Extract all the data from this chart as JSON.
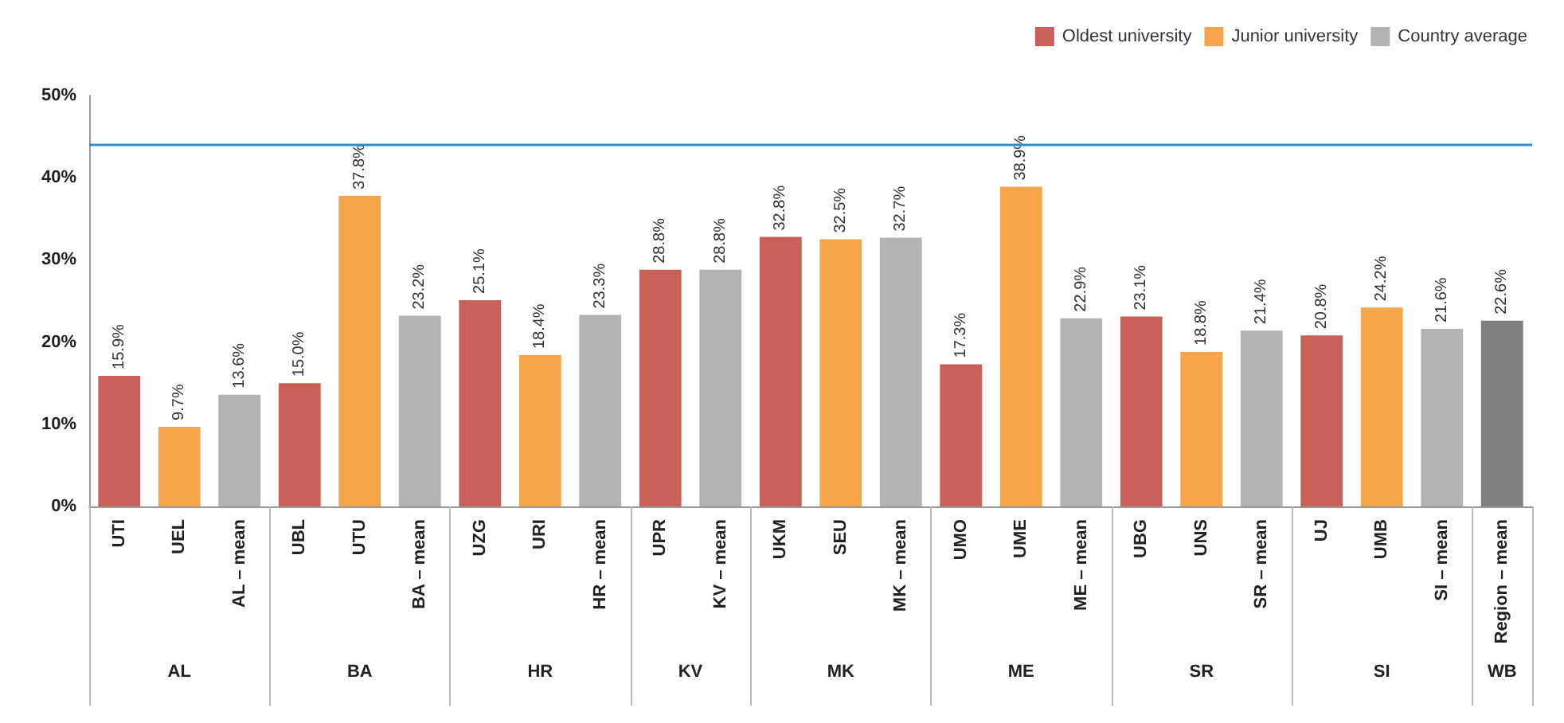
{
  "chart_data": {
    "type": "bar",
    "categories": [
      "UTI",
      "UEL",
      "AL – mean",
      "UBL",
      "UTU",
      "BA – mean",
      "UZG",
      "URI",
      "HR – mean",
      "UPR",
      "KV – mean",
      "UKM",
      "SEU",
      "MK – mean",
      "UMO",
      "UME",
      "ME – mean",
      "UBG",
      "UNS",
      "SR – mean",
      "UJ",
      "UMB",
      "SI – mean",
      "Region – mean"
    ],
    "series": [
      {
        "name": "Oldest university",
        "color": "#c9605a",
        "values": [
          15.9,
          null,
          null,
          15.0,
          null,
          null,
          25.1,
          null,
          null,
          28.8,
          null,
          32.8,
          null,
          null,
          17.3,
          null,
          null,
          23.1,
          null,
          null,
          20.8,
          null,
          null,
          null
        ],
        "value_labels": [
          "15.9%",
          null,
          null,
          "15.0%",
          null,
          null,
          "25.1%",
          null,
          null,
          "28.8%",
          null,
          "32.8%",
          null,
          null,
          "17.3%",
          null,
          null,
          "23.1%",
          null,
          null,
          "20.8%",
          null,
          null,
          null
        ]
      },
      {
        "name": "Junior university",
        "color": "#f5a54a",
        "values": [
          null,
          9.7,
          null,
          null,
          37.8,
          null,
          null,
          18.4,
          null,
          null,
          null,
          null,
          32.5,
          null,
          null,
          38.9,
          null,
          null,
          18.8,
          null,
          null,
          24.2,
          null,
          null
        ],
        "value_labels": [
          null,
          "9.7%",
          null,
          null,
          "37.8%",
          null,
          null,
          "18.4%",
          null,
          null,
          null,
          null,
          "32.5%",
          null,
          null,
          "38.9%",
          null,
          null,
          "18.8%",
          null,
          null,
          "24.2%",
          null,
          null
        ]
      },
      {
        "name": "Country average",
        "color": "#b3b3b3",
        "values": [
          null,
          null,
          13.6,
          null,
          null,
          23.2,
          null,
          null,
          23.3,
          null,
          28.8,
          null,
          null,
          32.7,
          null,
          null,
          22.9,
          null,
          null,
          21.4,
          null,
          null,
          21.6,
          null
        ],
        "value_labels": [
          null,
          null,
          "13.6%",
          null,
          null,
          "23.2%",
          null,
          null,
          "23.3%",
          null,
          "28.8%",
          null,
          null,
          "32.7%",
          null,
          null,
          "22.9%",
          null,
          null,
          "21.4%",
          null,
          null,
          "21.6%",
          null
        ]
      },
      {
        "color": "#7f7f7f",
        "values": [
          null,
          null,
          null,
          null,
          null,
          null,
          null,
          null,
          null,
          null,
          null,
          null,
          null,
          null,
          null,
          null,
          null,
          null,
          null,
          null,
          null,
          null,
          null,
          22.6
        ],
        "value_labels": [
          null,
          null,
          null,
          null,
          null,
          null,
          null,
          null,
          null,
          null,
          null,
          null,
          null,
          null,
          null,
          null,
          null,
          null,
          null,
          null,
          null,
          null,
          null,
          "22.6%"
        ]
      }
    ],
    "ylim": [
      0,
      50
    ],
    "yticks": [
      {
        "value": 0,
        "label": "0%"
      },
      {
        "value": 10,
        "label": "10%"
      },
      {
        "value": 20,
        "label": "20%"
      },
      {
        "value": 30,
        "label": "30%"
      },
      {
        "value": 40,
        "label": "40%"
      },
      {
        "value": 50,
        "label": "50%"
      }
    ],
    "ref_lines": [
      {
        "axis": "y",
        "value": 44,
        "label": null,
        "color": "#2e8fd1"
      }
    ],
    "annotations": [
      "AL",
      "BA",
      "HR",
      "KV",
      "MK",
      "ME",
      "SR",
      "SI",
      "WB"
    ],
    "grid": false,
    "legend": "top right"
  }
}
